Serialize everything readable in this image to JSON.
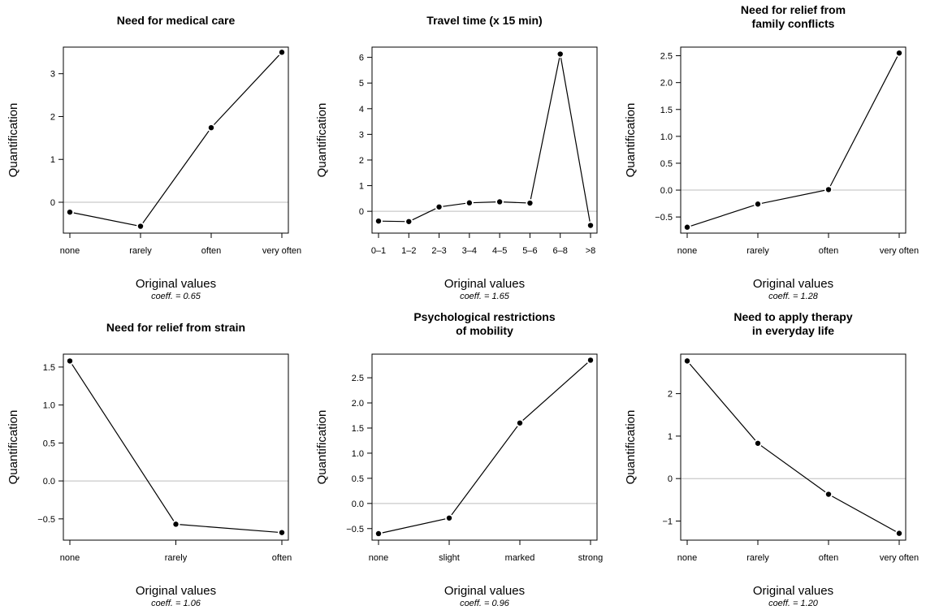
{
  "chart_data": [
    {
      "type": "line",
      "title": [
        "Need for medical care"
      ],
      "xlabel": "Original values",
      "ylabel": "Quantification",
      "coeff_label": "coeff. = ",
      "coeff_value": "0.65",
      "categories": [
        "none",
        "rarely",
        "often",
        "very often"
      ],
      "values": [
        -0.23,
        -0.56,
        1.74,
        3.5
      ],
      "ylim": [
        -0.72,
        3.62
      ],
      "yticks": [
        0,
        1,
        2,
        3
      ],
      "ytick_labels": [
        "0",
        "1",
        "2",
        "3"
      ],
      "reference_line": 0,
      "grid": false
    },
    {
      "type": "line",
      "title": [
        "Travel time (x 15 min)"
      ],
      "xlabel": "Original values",
      "ylabel": "Quantification",
      "coeff_label": "coeff. = ",
      "coeff_value": "1.65",
      "categories": [
        "0–1",
        "1–2",
        "2–3",
        "3–4",
        "4–5",
        "5–6",
        "6–8",
        ">8"
      ],
      "values": [
        -0.38,
        -0.4,
        0.17,
        0.33,
        0.37,
        0.32,
        6.13,
        -0.55
      ],
      "ylim": [
        -0.85,
        6.4
      ],
      "yticks": [
        0,
        1,
        2,
        3,
        4,
        5,
        6
      ],
      "ytick_labels": [
        "0",
        "1",
        "2",
        "3",
        "4",
        "5",
        "6"
      ],
      "reference_line": 0,
      "grid": false
    },
    {
      "type": "line",
      "title": [
        "Need for relief from",
        "family conflicts"
      ],
      "xlabel": "Original values",
      "ylabel": "Quantification",
      "coeff_label": "coeff. = ",
      "coeff_value": "1.28",
      "categories": [
        "none",
        "rarely",
        "often",
        "very often"
      ],
      "values": [
        -0.69,
        -0.26,
        0.01,
        2.55
      ],
      "ylim": [
        -0.8,
        2.66
      ],
      "yticks": [
        -0.5,
        0,
        0.5,
        1,
        1.5,
        2,
        2.5
      ],
      "ytick_labels": [
        "−0.5",
        "0.0",
        "0.5",
        "1.0",
        "1.5",
        "2.0",
        "2.5"
      ],
      "reference_line": 0,
      "grid": false
    },
    {
      "type": "line",
      "title": [
        "Need for relief from strain"
      ],
      "xlabel": "Original values",
      "ylabel": "Quantification",
      "coeff_label": "coeff. = ",
      "coeff_value": "1.06",
      "categories": [
        "none",
        "rarely",
        "often"
      ],
      "values": [
        1.58,
        -0.57,
        -0.68
      ],
      "ylim": [
        -0.78,
        1.67
      ],
      "yticks": [
        -0.5,
        0,
        0.5,
        1,
        1.5
      ],
      "ytick_labels": [
        "−0.5",
        "0.0",
        "0.5",
        "1.0",
        "1.5"
      ],
      "reference_line": 0,
      "grid": false
    },
    {
      "type": "line",
      "title": [
        "Psychological restrictions",
        "of mobility"
      ],
      "xlabel": "Original values",
      "ylabel": "Quantification",
      "coeff_label": "coeff. = ",
      "coeff_value": "0.96",
      "categories": [
        "none",
        "slight",
        "marked",
        "strong"
      ],
      "values": [
        -0.6,
        -0.29,
        1.6,
        2.85
      ],
      "ylim": [
        -0.73,
        2.97
      ],
      "yticks": [
        -0.5,
        0,
        0.5,
        1,
        1.5,
        2,
        2.5
      ],
      "ytick_labels": [
        "−0.5",
        "0.0",
        "0.5",
        "1.0",
        "1.5",
        "2.0",
        "2.5"
      ],
      "reference_line": 0,
      "grid": false
    },
    {
      "type": "line",
      "title": [
        "Need to apply therapy",
        "in everyday life"
      ],
      "xlabel": "Original values",
      "ylabel": "Quantification",
      "coeff_label": "coeff. = ",
      "coeff_value": "1.20",
      "categories": [
        "none",
        "rarely",
        "often",
        "very often"
      ],
      "values": [
        2.77,
        0.83,
        -0.37,
        -1.29
      ],
      "ylim": [
        -1.45,
        2.93
      ],
      "yticks": [
        -1,
        0,
        1,
        2
      ],
      "ytick_labels": [
        "−1",
        "0",
        "1",
        "2"
      ],
      "reference_line": 0,
      "grid": false
    }
  ],
  "colors": {
    "line": "#000000",
    "point": "#000000",
    "reference_line": "#bebebe",
    "frame": "#000000"
  }
}
